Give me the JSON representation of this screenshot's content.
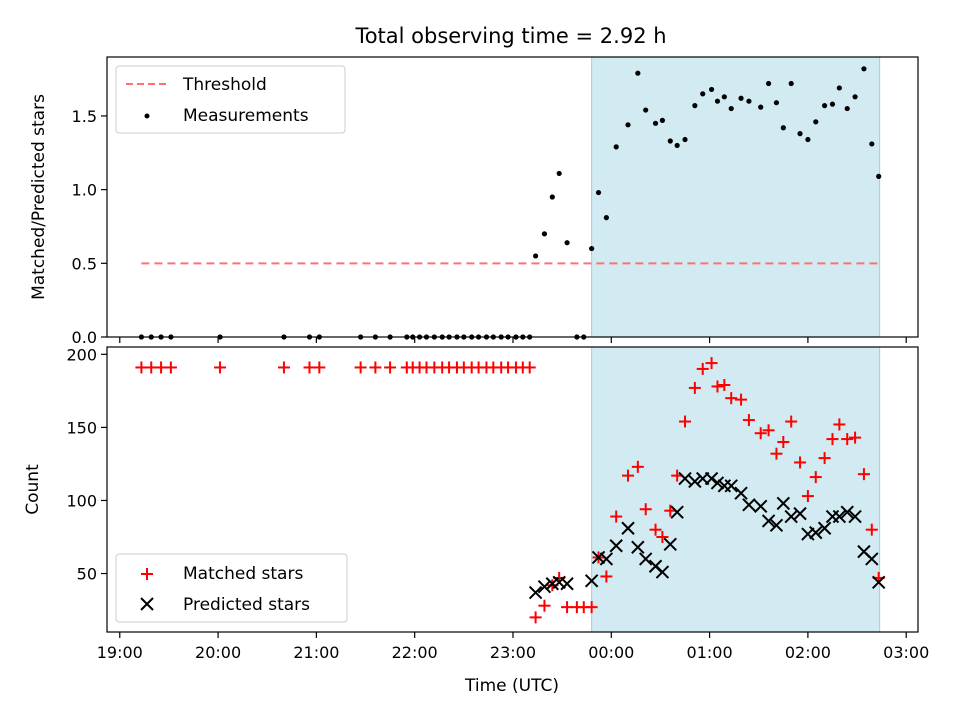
{
  "title": "Total observing time = 2.92 h",
  "chart_data": [
    {
      "type": "scatter",
      "panel": "top",
      "ylabel": "Matched/Predicted stars",
      "xlabel": "",
      "ylim": [
        0,
        1.9
      ],
      "yticks": [
        "0.0",
        "0.5",
        "1.0",
        "1.5"
      ],
      "ytick_values": [
        0,
        0.5,
        1.0,
        1.5
      ],
      "legend_position": "top-left",
      "shaded_region": {
        "x_start_hours": 23.8,
        "x_end_hours": 26.73,
        "color": "#add8e6"
      },
      "series": [
        {
          "name": "Threshold",
          "kind": "dashed-line",
          "color": "#ff7070",
          "x": [
            19.22,
            26.72
          ],
          "y": [
            0.5,
            0.5
          ]
        },
        {
          "name": "Measurements",
          "kind": "points",
          "color": "#000000",
          "x": [
            19.22,
            19.32,
            19.42,
            19.52,
            20.02,
            20.67,
            20.93,
            21.03,
            21.45,
            21.6,
            21.75,
            21.92,
            21.98,
            22.05,
            22.12,
            22.2,
            22.28,
            22.35,
            22.43,
            22.5,
            22.58,
            22.65,
            22.73,
            22.8,
            22.88,
            22.95,
            23.03,
            23.1,
            23.17,
            23.23,
            23.32,
            23.4,
            23.47,
            23.55,
            23.65,
            23.72,
            23.8,
            23.87,
            23.95,
            24.05,
            24.17,
            24.27,
            24.35,
            24.45,
            24.52,
            24.6,
            24.67,
            24.75,
            24.85,
            24.93,
            25.02,
            25.08,
            25.15,
            25.22,
            25.32,
            25.4,
            25.52,
            25.6,
            25.68,
            25.75,
            25.83,
            25.92,
            26.0,
            26.08,
            26.17,
            26.25,
            26.32,
            26.4,
            26.48,
            26.57,
            26.65,
            26.72
          ],
          "y": [
            0,
            0,
            0,
            0,
            0,
            0,
            0,
            0,
            0,
            0,
            0,
            0,
            0,
            0,
            0,
            0,
            0,
            0,
            0,
            0,
            0,
            0,
            0,
            0,
            0,
            0,
            0,
            0,
            0,
            0.55,
            0.7,
            0.95,
            1.11,
            0.64,
            0,
            0,
            0.6,
            0.98,
            0.81,
            1.29,
            1.44,
            1.79,
            1.54,
            1.45,
            1.47,
            1.33,
            1.3,
            1.34,
            1.57,
            1.65,
            1.68,
            1.6,
            1.63,
            1.55,
            1.62,
            1.6,
            1.56,
            1.72,
            1.59,
            1.42,
            1.72,
            1.38,
            1.34,
            1.46,
            1.57,
            1.58,
            1.69,
            1.55,
            1.63,
            1.82,
            1.31,
            1.09
          ]
        }
      ]
    },
    {
      "type": "scatter",
      "panel": "bottom",
      "ylabel": "Count",
      "xlabel": "Time (UTC)",
      "ylim": [
        10,
        205
      ],
      "yticks": [
        "50",
        "100",
        "150",
        "200"
      ],
      "ytick_values": [
        50,
        100,
        150,
        200
      ],
      "x_tick_labels": [
        "19:00",
        "20:00",
        "21:00",
        "22:00",
        "23:00",
        "00:00",
        "01:00",
        "02:00",
        "03:00"
      ],
      "x_tick_values": [
        19,
        20,
        21,
        22,
        23,
        24,
        25,
        26,
        27
      ],
      "xlim": [
        18.87,
        27.12
      ],
      "legend_position": "bottom-left",
      "shaded_region": {
        "x_start_hours": 23.8,
        "x_end_hours": 26.73,
        "color": "#add8e6"
      },
      "series": [
        {
          "name": "Matched stars",
          "marker": "plus",
          "color": "#ff0000",
          "x": [
            19.22,
            19.32,
            19.42,
            19.52,
            20.02,
            20.67,
            20.93,
            21.03,
            21.45,
            21.6,
            21.75,
            21.92,
            21.98,
            22.05,
            22.12,
            22.2,
            22.28,
            22.35,
            22.43,
            22.5,
            22.58,
            22.65,
            22.73,
            22.8,
            22.88,
            22.95,
            23.03,
            23.1,
            23.17,
            23.23,
            23.32,
            23.4,
            23.47,
            23.55,
            23.65,
            23.72,
            23.8,
            23.87,
            23.95,
            24.05,
            24.17,
            24.27,
            24.35,
            24.45,
            24.52,
            24.6,
            24.67,
            24.75,
            24.85,
            24.93,
            25.02,
            25.08,
            25.15,
            25.22,
            25.32,
            25.4,
            25.52,
            25.6,
            25.68,
            25.75,
            25.83,
            25.92,
            26.0,
            26.08,
            26.17,
            26.25,
            26.32,
            26.4,
            26.48,
            26.57,
            26.65,
            26.72
          ],
          "y": [
            191,
            191,
            191,
            191,
            191,
            191,
            191,
            191,
            191,
            191,
            191,
            191,
            191,
            191,
            191,
            191,
            191,
            191,
            191,
            191,
            191,
            191,
            191,
            191,
            191,
            191,
            191,
            191,
            191,
            20,
            28,
            42,
            47,
            27,
            27,
            27,
            27,
            61,
            48,
            89,
            117,
            123,
            94,
            80,
            75,
            93,
            117,
            154,
            177,
            190,
            194,
            178,
            179,
            170,
            169,
            155,
            146,
            148,
            132,
            140,
            154,
            126,
            103,
            116,
            129,
            142,
            152,
            142,
            143,
            118,
            80,
            47
          ]
        },
        {
          "name": "Predicted stars",
          "marker": "x",
          "color": "#000000",
          "x": [
            23.23,
            23.32,
            23.4,
            23.47,
            23.55,
            23.8,
            23.87,
            23.95,
            24.05,
            24.17,
            24.27,
            24.35,
            24.45,
            24.52,
            24.6,
            24.67,
            24.75,
            24.85,
            24.93,
            25.02,
            25.08,
            25.15,
            25.22,
            25.32,
            25.4,
            25.52,
            25.6,
            25.68,
            25.75,
            25.83,
            25.92,
            26.0,
            26.08,
            26.17,
            26.25,
            26.32,
            26.4,
            26.48,
            26.57,
            26.65,
            26.72
          ],
          "y": [
            37,
            41,
            43,
            44,
            43,
            45,
            61,
            60,
            69,
            81,
            68,
            60,
            55,
            51,
            70,
            92,
            115,
            113,
            115,
            115,
            112,
            110,
            110,
            105,
            97,
            96,
            86,
            83,
            98,
            89,
            91,
            77,
            78,
            81,
            89,
            89,
            92,
            89,
            65,
            60,
            44
          ]
        }
      ]
    }
  ]
}
